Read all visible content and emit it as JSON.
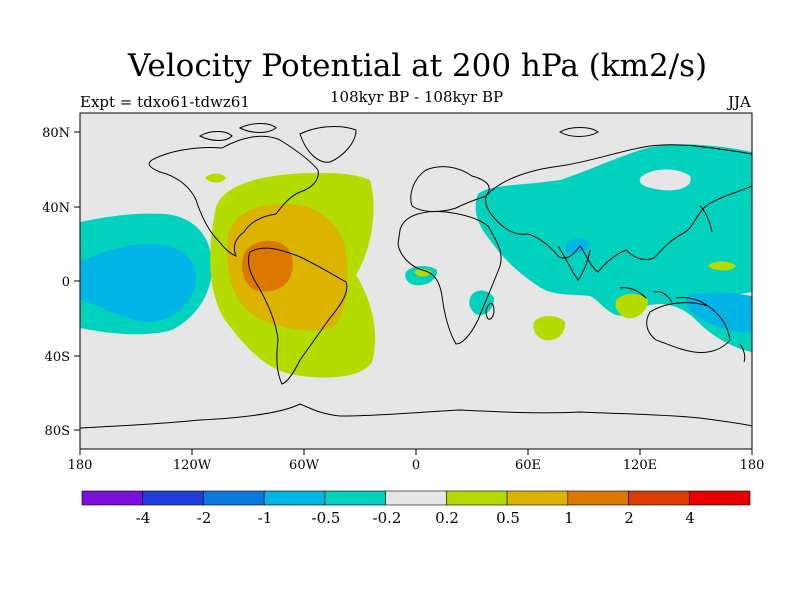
{
  "header": {
    "title": "Velocity Potential at 200 hPa (km2/s)",
    "subtitle": "108kyr BP - 108kyr BP",
    "experiment": "Expt = tdxo61-tdwz61",
    "season": "JJA"
  },
  "axes": {
    "lat_ticks": [
      "80N",
      "40N",
      "0",
      "40S",
      "80S"
    ],
    "lon_ticks": [
      "180",
      "120W",
      "60W",
      "0",
      "60E",
      "120E",
      "180"
    ]
  },
  "colorbar": {
    "colors": [
      "#7a0fdc",
      "#1e3cdc",
      "#0a78dc",
      "#00b4e6",
      "#00d2be",
      "#e6e6e6",
      "#b4dc00",
      "#dcb400",
      "#dc7800",
      "#dc3c00",
      "#e60000"
    ],
    "labels": [
      "-4",
      "-2",
      "-1",
      "-0.5",
      "-0.2",
      "0.2",
      "0.5",
      "1",
      "2",
      "4"
    ]
  },
  "map": {
    "background": "#e6e6e6",
    "colors": {
      "cyan": "#00b4e6",
      "teal": "#00d2be",
      "lime": "#b4dc00",
      "gold": "#dcb400",
      "orange": "#dc7800"
    }
  }
}
